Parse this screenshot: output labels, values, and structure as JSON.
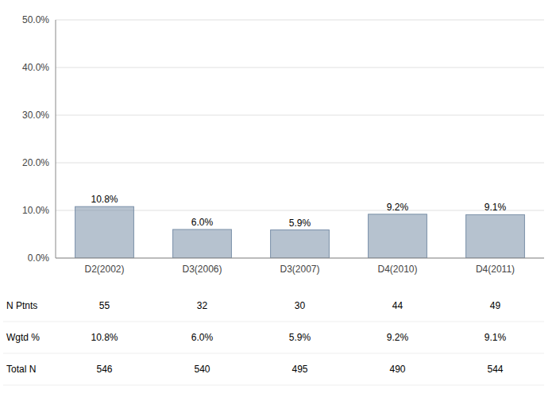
{
  "chart_data": {
    "type": "bar",
    "categories": [
      "D2(2002)",
      "D3(2006)",
      "D3(2007)",
      "D4(2010)",
      "D4(2011)"
    ],
    "values": [
      10.8,
      6.0,
      5.9,
      9.2,
      9.1
    ],
    "value_labels": [
      "10.8%",
      "6.0%",
      "5.9%",
      "9.2%",
      "9.1%"
    ],
    "data_labels": true,
    "color": "#7a8fa8",
    "ylim": [
      0,
      50
    ],
    "yticks": [
      {
        "value": 0,
        "label": "0.0%"
      },
      {
        "value": 10,
        "label": "10.0%"
      },
      {
        "value": 20,
        "label": "20.0%"
      },
      {
        "value": 30,
        "label": "30.0%"
      },
      {
        "value": 40,
        "label": "40.0%"
      },
      {
        "value": 50,
        "label": "50.0%"
      }
    ],
    "grid": true,
    "table": [
      {
        "name": "N Ptnts",
        "values": [
          55,
          32,
          30,
          44,
          49
        ]
      },
      {
        "name": "Wgtd %",
        "values": [
          10.8,
          6.0,
          5.9,
          9.2,
          9.1
        ],
        "value_labels": [
          "10.8%",
          "6.0%",
          "5.9%",
          "9.2%",
          "9.1%"
        ]
      },
      {
        "name": "Total N",
        "values": [
          546,
          540,
          495,
          490,
          544
        ]
      }
    ]
  }
}
